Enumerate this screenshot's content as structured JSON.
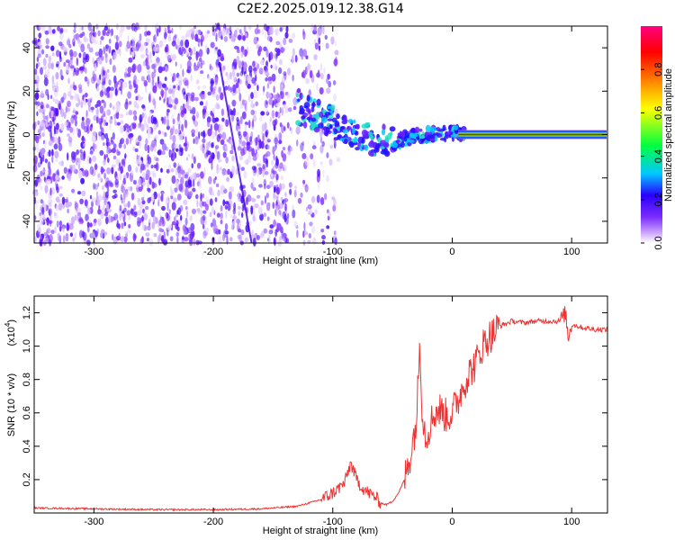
{
  "title": "C2E2.2025.019.12.38.G14",
  "chart_data": [
    {
      "type": "heatmap",
      "xlabel": "Height of straight line (km)",
      "ylabel": "Frequency (Hz)",
      "xlim": [
        -350,
        130
      ],
      "ylim": [
        -50,
        50
      ],
      "xticks": [
        -300,
        -200,
        -100,
        0,
        100
      ],
      "yticks": [
        -40,
        -20,
        0,
        20,
        40
      ],
      "colorbar": {
        "label": "Normalized spectral amplitude",
        "range": [
          0.0,
          1.0
        ],
        "ticks": [
          "0.0",
          "0.2",
          "0.4",
          "0.6",
          "0.8"
        ],
        "colormap": [
          "#ffffff",
          "#c9a0ff",
          "#7b2cff",
          "#2a00ff",
          "#00c8ff",
          "#00ff40",
          "#ffff00",
          "#ff8000",
          "#ff0000",
          "#ff0080"
        ]
      },
      "features": {
        "noise_region_x": [
          -350,
          -140
        ],
        "signal_band": [
          {
            "x": -130,
            "freq": 12
          },
          {
            "x": -110,
            "freq": 8
          },
          {
            "x": -90,
            "freq": 3
          },
          {
            "x": -70,
            "freq": -2
          },
          {
            "x": -50,
            "freq": -4
          },
          {
            "x": -35,
            "freq": -1
          },
          {
            "x": -20,
            "freq": 0
          },
          {
            "x": 0,
            "freq": 1
          },
          {
            "x": 10,
            "freq": 0
          },
          {
            "x": 130,
            "freq": 0
          }
        ],
        "tone_frequency": 0,
        "tone_start_x": 5,
        "tone_end_x": 130
      }
    },
    {
      "type": "line",
      "xlabel": "Height of straight line (km)",
      "ylabel": "SNR (10 * v/v)",
      "multiplier": "(x10",
      "multiplier_exp": "4",
      "multiplier_close": ")",
      "xlim": [
        -350,
        130
      ],
      "ylim": [
        0,
        1.3
      ],
      "xticks": [
        -300,
        -200,
        -100,
        0,
        100
      ],
      "yticks": [
        "0.2",
        "0.4",
        "0.6",
        "0.8",
        "1.0",
        "1.2"
      ],
      "color": "#ee3333",
      "series": [
        {
          "x": [
            -350,
            -300,
            -250,
            -200,
            -160,
            -130,
            -110,
            -100,
            -90,
            -85,
            -80,
            -75,
            -70,
            -65,
            -60,
            -55,
            -50,
            -45,
            -40,
            -35,
            -30,
            -27,
            -25,
            -22,
            -20,
            -15,
            -10,
            -5,
            0,
            5,
            10,
            15,
            20,
            25,
            30,
            35,
            40,
            50,
            60,
            70,
            80,
            90,
            95,
            97,
            100,
            105,
            110,
            120,
            130
          ],
          "values": [
            0.03,
            0.025,
            0.02,
            0.02,
            0.025,
            0.04,
            0.08,
            0.12,
            0.18,
            0.3,
            0.2,
            0.15,
            0.12,
            0.1,
            0.06,
            0.05,
            0.07,
            0.12,
            0.2,
            0.35,
            0.55,
            1.05,
            0.6,
            0.45,
            0.5,
            0.6,
            0.62,
            0.58,
            0.6,
            0.68,
            0.78,
            0.85,
            0.9,
            1.0,
            1.05,
            1.08,
            1.12,
            1.15,
            1.14,
            1.15,
            1.15,
            1.15,
            1.2,
            1.05,
            1.13,
            1.12,
            1.11,
            1.1,
            1.1
          ]
        }
      ]
    }
  ]
}
